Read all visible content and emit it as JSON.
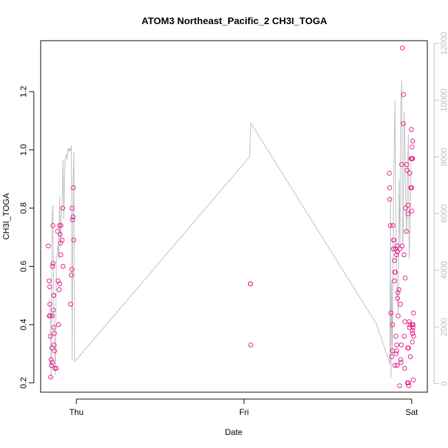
{
  "chart_data": {
    "type": "scatter",
    "title": "ATOM3 Northeast_Pacific_2 CH3I_TOGA",
    "xlabel": "Date",
    "ylabel": "CH3I_TOGA",
    "x_ticks": [
      {
        "value": 0.0,
        "label": "Thu"
      },
      {
        "value": 1.0,
        "label": "Fri"
      },
      {
        "value": 2.0,
        "label": "Sat"
      }
    ],
    "xlim": [
      -0.213,
      2.093
    ],
    "ylim": [
      0.168,
      1.375
    ],
    "y_ticks": [
      0.2,
      0.4,
      0.6,
      0.8,
      1.0,
      1.2
    ],
    "y2lim": [
      -300,
      12100
    ],
    "y2_ticks": [
      0,
      2000,
      4000,
      6000,
      8000,
      10000,
      12000
    ],
    "colors": {
      "points": "#e61a8d",
      "line": "#bebebe",
      "axes": "#000000",
      "right_axis": "#bebebe"
    },
    "grid": false,
    "series": [
      {
        "type": "scatter",
        "axis": "left",
        "x": [
          -0.167,
          -0.163,
          -0.162,
          -0.159,
          -0.158,
          -0.156,
          -0.155,
          -0.153,
          -0.151,
          -0.149,
          -0.146,
          -0.144,
          -0.143,
          -0.142,
          -0.14,
          -0.139,
          -0.138,
          -0.136,
          -0.135,
          -0.134,
          -0.133,
          -0.131,
          -0.13,
          -0.128,
          -0.12,
          -0.112,
          -0.109,
          -0.106,
          -0.103,
          -0.101,
          -0.099,
          -0.097,
          -0.095,
          -0.093,
          -0.092,
          -0.085,
          -0.082,
          -0.08,
          -0.034,
          -0.03,
          -0.027,
          -0.026,
          -0.023,
          -0.02,
          -0.018,
          -0.016,
          1.038,
          1.039,
          1.04,
          1.866,
          1.868,
          1.869,
          1.872,
          1.876,
          1.88,
          1.885,
          1.886,
          1.888,
          1.89,
          1.892,
          1.894,
          1.896,
          1.897,
          1.899,
          1.9,
          1.902,
          1.903,
          1.905,
          1.907,
          1.909,
          1.91,
          1.911,
          1.912,
          1.913,
          1.914,
          1.915,
          1.917,
          1.919,
          1.924,
          1.928,
          1.93,
          1.932,
          1.934,
          1.936,
          1.938,
          1.94,
          1.943,
          1.945,
          1.95,
          1.951,
          1.954,
          1.956,
          1.958,
          1.959,
          1.961,
          1.963,
          1.968,
          1.97,
          1.972,
          1.974,
          1.976,
          1.978,
          1.979,
          1.98,
          1.981,
          1.983,
          1.984,
          1.986,
          1.988,
          1.99,
          1.992,
          1.994,
          1.996,
          2.005
        ],
        "y": [
          0.67,
          0.55,
          0.43,
          0.53,
          0.47,
          0.43,
          0.36,
          0.22,
          0.28,
          0.26,
          0.32,
          0.27,
          0.43,
          0.6,
          0.74,
          0.61,
          0.45,
          0.5,
          0.5,
          0.39,
          0.33,
          0.37,
          0.31,
          0.25,
          0.25,
          0.72,
          0.55,
          0.4,
          0.52,
          0.74,
          0.54,
          0.71,
          0.68,
          0.64,
          0.74,
          0.69,
          0.8,
          0.6,
          0.47,
          0.57,
          0.59,
          0.8,
          0.76,
          0.77,
          0.87,
          0.69,
          0.54,
          0.54,
          0.33,
          0.92,
          0.87,
          0.83,
          0.74,
          0.44,
          0.29,
          0.31,
          0.4,
          0.74,
          0.66,
          0.69,
          0.69,
          0.55,
          0.62,
          0.58,
          0.26,
          0.58,
          0.66,
          0.36,
          0.3,
          0.64,
          0.31,
          0.33,
          0.67,
          0.26,
          0.65,
          0.49,
          0.51,
          0.43,
          0.52,
          0.19,
          0.66,
          0.47,
          0.28,
          0.27,
          0.33,
          0.95,
          0.67,
          1.35,
          1.09,
          1.19,
          0.64,
          0.36,
          0.25,
          0.41,
          0.56,
          0.8,
          0.72,
          0.95,
          0.93,
          0.2,
          0.32,
          0.78,
          0.81,
          0.2,
          0.32,
          0.19,
          0.41,
          0.39,
          0.92,
          0.4,
          0.29,
          0.87,
          0.97,
          0.97
        ],
        "y_extra": {
          "x": [
            1.996,
            1.998,
            1.999,
            2.0,
            2.001,
            2.002,
            2.003,
            2.004,
            2.004,
            2.005,
            2.006,
            2.007,
            2.008,
            2.009,
            2.01,
            2.012
          ],
          "y": [
            0.87,
            1.07,
            0.87,
            0.79,
            0.97,
            1.01,
            0.4,
            0.38,
            0.34,
            0.37,
            1.03,
            0.39,
            0.4,
            0.21,
            0.44,
            0.36
          ]
        }
      },
      {
        "type": "line",
        "axis": "right",
        "x": [
          -0.16,
          -0.155,
          -0.15,
          -0.145,
          -0.14,
          -0.135,
          -0.13,
          -0.125,
          -0.12,
          -0.115,
          -0.11,
          -0.105,
          -0.1,
          -0.095,
          -0.09,
          -0.085,
          -0.08,
          -0.075,
          -0.07,
          -0.065,
          -0.06,
          -0.055,
          -0.05,
          -0.045,
          -0.04,
          -0.035,
          -0.03,
          -0.025,
          -0.02,
          -0.015,
          -0.01,
          1.033,
          1.036,
          1.04,
          1.79,
          1.87,
          1.873,
          1.876,
          1.88,
          1.885,
          1.89,
          1.895,
          1.9,
          1.905,
          1.91,
          1.915,
          1.92,
          1.925,
          1.93,
          1.935,
          1.94,
          1.945,
          1.95,
          1.955,
          1.96,
          1.965,
          1.97,
          1.975,
          1.98,
          1.985,
          1.99,
          1.995,
          2.0
        ],
        "y": [
          3000,
          2200,
          200,
          5800,
          6300,
          2200,
          1500,
          300,
          4400,
          4600,
          4900,
          4400,
          6600,
          4900,
          5900,
          6300,
          7900,
          5800,
          7700,
          8000,
          8100,
          7900,
          8300,
          8200,
          8300,
          8200,
          8400,
          800,
          7100,
          8200,
          780,
          8000,
          8500,
          9200,
          2100,
          700,
          6600,
          200,
          3600,
          1000,
          6100,
          7800,
          10000,
          5600,
          4000,
          3000,
          2500,
          7200,
          4800,
          9800,
          10700,
          4900,
          5200,
          9600,
          8400,
          6100,
          5300,
          7500,
          8800,
          4400,
          5300,
          7800,
          7900
        ]
      }
    ]
  }
}
